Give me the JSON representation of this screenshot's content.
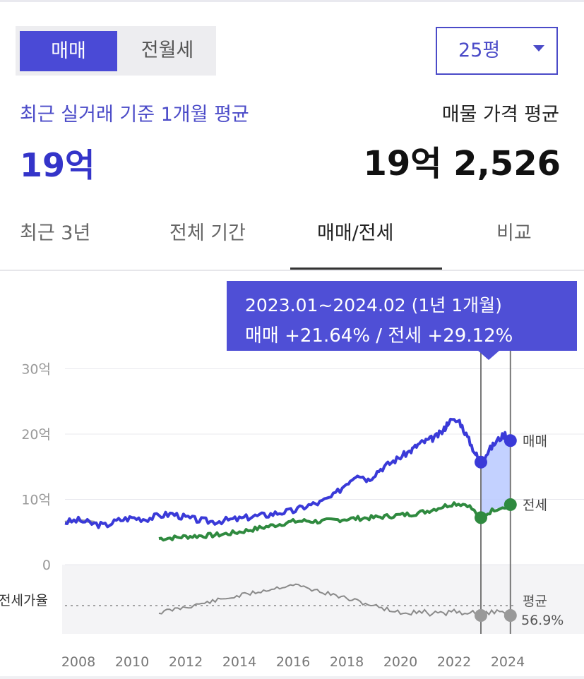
{
  "trade_type": {
    "options": [
      "매매",
      "전월세"
    ],
    "selected": "매매"
  },
  "size_select": {
    "value": "25평"
  },
  "summary": {
    "recent_label": "최근 실거래 기준 1개월 평균",
    "recent_value": "19억",
    "listing_label": "매물 가격 평균",
    "listing_value": "19억 2,526"
  },
  "tabs": [
    {
      "label": "최근 3년",
      "active": false
    },
    {
      "label": "전체 기간",
      "active": false
    },
    {
      "label": "매매/전세",
      "active": true
    },
    {
      "label": "비교",
      "active": false
    }
  ],
  "tooltip": {
    "range": "2023.01~2024.02 (1년 1개월)",
    "change": "매매 +21.64%  /  전세 +29.12%"
  },
  "colors": {
    "accent": "#4a4ad6",
    "sale_line": "#3a3ad8",
    "jeonse_line": "#2f8a3f",
    "ratio_line": "#8a8a8a",
    "highlight_fill": "#b8c9ff"
  },
  "chart_data": {
    "type": "line",
    "x_label_ticks": [
      "2008",
      "2010",
      "2012",
      "2014",
      "2016",
      "2018",
      "2020",
      "2022",
      "2024"
    ],
    "y_tick_labels": [
      "0",
      "10억",
      "20억",
      "30억"
    ],
    "y_ticks": [
      0,
      10,
      20,
      30
    ],
    "ylim": [
      0,
      30
    ],
    "xlim": [
      2007.5,
      2024.5
    ],
    "units": "억",
    "grid": true,
    "series": [
      {
        "name": "매매",
        "color": "#3a3ad8",
        "points": [
          [
            2007.5,
            6.5
          ],
          [
            2008.0,
            6.8
          ],
          [
            2008.5,
            6.3
          ],
          [
            2009.0,
            6.0
          ],
          [
            2009.5,
            6.8
          ],
          [
            2010.0,
            7.2
          ],
          [
            2010.5,
            7.0
          ],
          [
            2011.0,
            7.5
          ],
          [
            2011.5,
            7.8
          ],
          [
            2012.0,
            7.2
          ],
          [
            2012.5,
            6.8
          ],
          [
            2013.0,
            6.6
          ],
          [
            2013.5,
            6.8
          ],
          [
            2014.0,
            7.0
          ],
          [
            2014.5,
            7.4
          ],
          [
            2015.0,
            7.6
          ],
          [
            2015.5,
            8.0
          ],
          [
            2016.0,
            8.2
          ],
          [
            2016.5,
            9.0
          ],
          [
            2017.0,
            9.5
          ],
          [
            2017.5,
            10.5
          ],
          [
            2018.0,
            12.5
          ],
          [
            2018.4,
            14.0
          ],
          [
            2018.8,
            13.0
          ],
          [
            2019.2,
            14.5
          ],
          [
            2019.6,
            15.5
          ],
          [
            2020.0,
            16.5
          ],
          [
            2020.4,
            17.5
          ],
          [
            2020.7,
            18.5
          ],
          [
            2021.0,
            19.0
          ],
          [
            2021.3,
            19.5
          ],
          [
            2021.6,
            20.5
          ],
          [
            2021.8,
            22.0
          ],
          [
            2022.2,
            22.0
          ],
          [
            2022.5,
            19.5
          ],
          [
            2022.8,
            17.0
          ],
          [
            2023.0,
            15.7
          ],
          [
            2023.3,
            17.5
          ],
          [
            2023.6,
            19.0
          ],
          [
            2023.9,
            20.0
          ],
          [
            2024.1,
            19.0
          ]
        ]
      },
      {
        "name": "전세",
        "color": "#2f8a3f",
        "points": [
          [
            2011.0,
            4.0
          ],
          [
            2011.5,
            4.1
          ],
          [
            2012.0,
            4.3
          ],
          [
            2012.5,
            4.4
          ],
          [
            2013.0,
            4.5
          ],
          [
            2013.5,
            4.7
          ],
          [
            2014.0,
            5.0
          ],
          [
            2014.5,
            5.4
          ],
          [
            2015.0,
            5.8
          ],
          [
            2015.5,
            6.2
          ],
          [
            2016.0,
            6.6
          ],
          [
            2016.5,
            6.7
          ],
          [
            2017.0,
            6.6
          ],
          [
            2017.5,
            6.8
          ],
          [
            2018.0,
            7.0
          ],
          [
            2018.5,
            7.1
          ],
          [
            2019.0,
            7.2
          ],
          [
            2019.5,
            7.4
          ],
          [
            2020.0,
            7.6
          ],
          [
            2020.5,
            7.8
          ],
          [
            2021.0,
            8.2
          ],
          [
            2021.5,
            8.8
          ],
          [
            2022.0,
            9.4
          ],
          [
            2022.5,
            9.2
          ],
          [
            2023.0,
            7.2
          ],
          [
            2023.5,
            8.5
          ],
          [
            2024.1,
            9.2
          ]
        ]
      }
    ],
    "highlight": {
      "from": 2023.0,
      "to": 2024.1
    },
    "end_labels": [
      "매매",
      "전세"
    ],
    "ratio_panel": {
      "label": "전세가율",
      "average_label": "평균",
      "average_value": "56.9%",
      "average_level": 56.9
    }
  }
}
